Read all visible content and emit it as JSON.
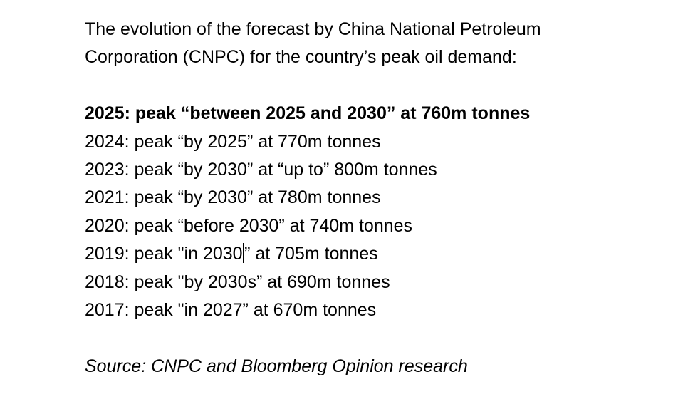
{
  "intro": {
    "line1": "The evolution of the forecast by China National Petroleum",
    "line2": "Corporation (CNPC) for the country’s peak oil demand:"
  },
  "forecasts": [
    "2025: peak “between 2025 and 2030” at 760m tonnes",
    "2024: peak “by 2025” at 770m tonnes",
    "2023: peak “by 2030” at “up to” 800m tonnes",
    "2021: peak “by 2030” at 780m tonnes",
    "2020: peak “before 2030” at 740m tonnes",
    {
      "before_cursor": "2019: peak \"in 2030",
      "after_cursor": "” at 705m tonnes"
    },
    "2018: peak \"by 2030s” at 690m tonnes",
    "2017: peak \"in 2027” at 670m tonnes"
  ],
  "source": "Source: CNPC and Bloomberg Opinion research"
}
